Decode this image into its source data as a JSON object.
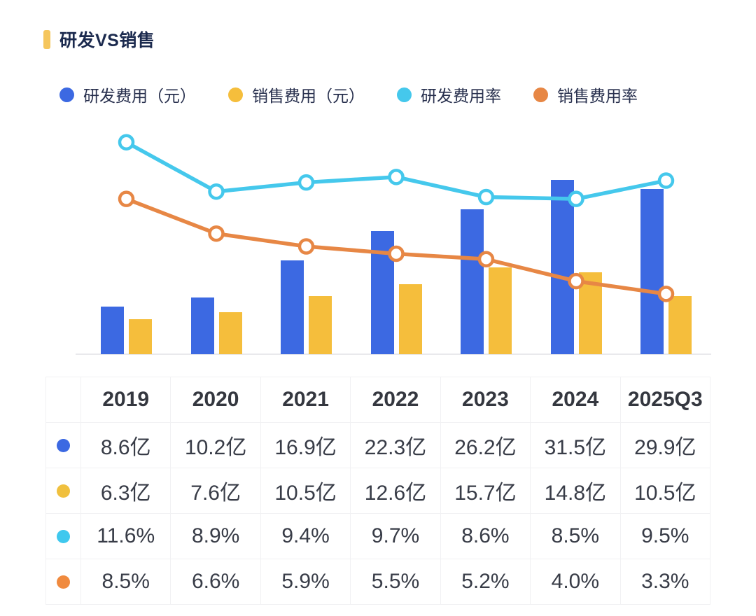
{
  "title": {
    "text": "研发VS销售",
    "marker_color": "#F5C65D",
    "text_color": "#1B2A4E"
  },
  "legend": {
    "text_color": "#272F4D",
    "items": [
      {
        "key": "rd-expense",
        "label": "研发费用（元）",
        "color": "#3C69E2"
      },
      {
        "key": "sales-expense",
        "label": "销售费用（元）",
        "color": "#F5BE3C"
      },
      {
        "key": "rd-rate",
        "label": "研发费用率",
        "color": "#45C8EC"
      },
      {
        "key": "sales-rate",
        "label": "销售费用率",
        "color": "#E78745"
      }
    ]
  },
  "chart_data": {
    "type": "bar+line combo",
    "categories": [
      "2019",
      "2020",
      "2021",
      "2022",
      "2023",
      "2024",
      "2025Q3"
    ],
    "series": [
      {
        "key": "rd-expense",
        "name": "研发费用（元）",
        "type": "bar",
        "unit": "亿",
        "color": "#3C69E2",
        "values": [
          8.6,
          10.2,
          16.9,
          22.3,
          26.2,
          31.5,
          29.9
        ]
      },
      {
        "key": "sales-expense",
        "name": "销售费用（元）",
        "type": "bar",
        "unit": "亿",
        "color": "#F5BE3C",
        "values": [
          6.3,
          7.6,
          10.5,
          12.6,
          15.7,
          14.8,
          10.5
        ]
      },
      {
        "key": "rd-rate",
        "name": "研发费用率",
        "type": "line",
        "unit": "%",
        "color": "#45C8EC",
        "values": [
          11.6,
          8.9,
          9.4,
          9.7,
          8.6,
          8.5,
          9.5
        ]
      },
      {
        "key": "sales-rate",
        "name": "销售费用率",
        "type": "line",
        "unit": "%",
        "color": "#E78745",
        "values": [
          8.5,
          6.6,
          5.9,
          5.5,
          5.2,
          4.0,
          3.3
        ]
      }
    ],
    "bar_axis": {
      "min": 0,
      "unit": "亿",
      "visible": false
    },
    "line_axis": {
      "min": 0,
      "unit": "%",
      "visible": false
    },
    "grid": false,
    "legend_position": "top",
    "x_labels_shown_in_table_only": true
  },
  "table": {
    "columns": [
      "",
      "2019",
      "2020",
      "2021",
      "2022",
      "2023",
      "2024",
      "2025Q3"
    ],
    "rows": [
      {
        "key": "rd-expense",
        "dot_color": "#3C69E2",
        "cells": [
          "8.6亿",
          "10.2亿",
          "16.9亿",
          "22.3亿",
          "26.2亿",
          "31.5亿",
          "29.9亿"
        ]
      },
      {
        "key": "sales-expense",
        "dot_color": "#F0C03E",
        "cells": [
          "6.3亿",
          "7.6亿",
          "10.5亿",
          "12.6亿",
          "15.7亿",
          "14.8亿",
          "10.5亿"
        ]
      },
      {
        "key": "rd-rate",
        "dot_color": "#3FC8EE",
        "cells": [
          "11.6%",
          "8.9%",
          "9.4%",
          "9.7%",
          "8.6%",
          "8.5%",
          "9.5%"
        ]
      },
      {
        "key": "sales-rate",
        "dot_color": "#F08A3E",
        "cells": [
          "8.5%",
          "6.6%",
          "5.9%",
          "5.5%",
          "5.2%",
          "4.0%",
          "3.3%"
        ]
      }
    ]
  }
}
